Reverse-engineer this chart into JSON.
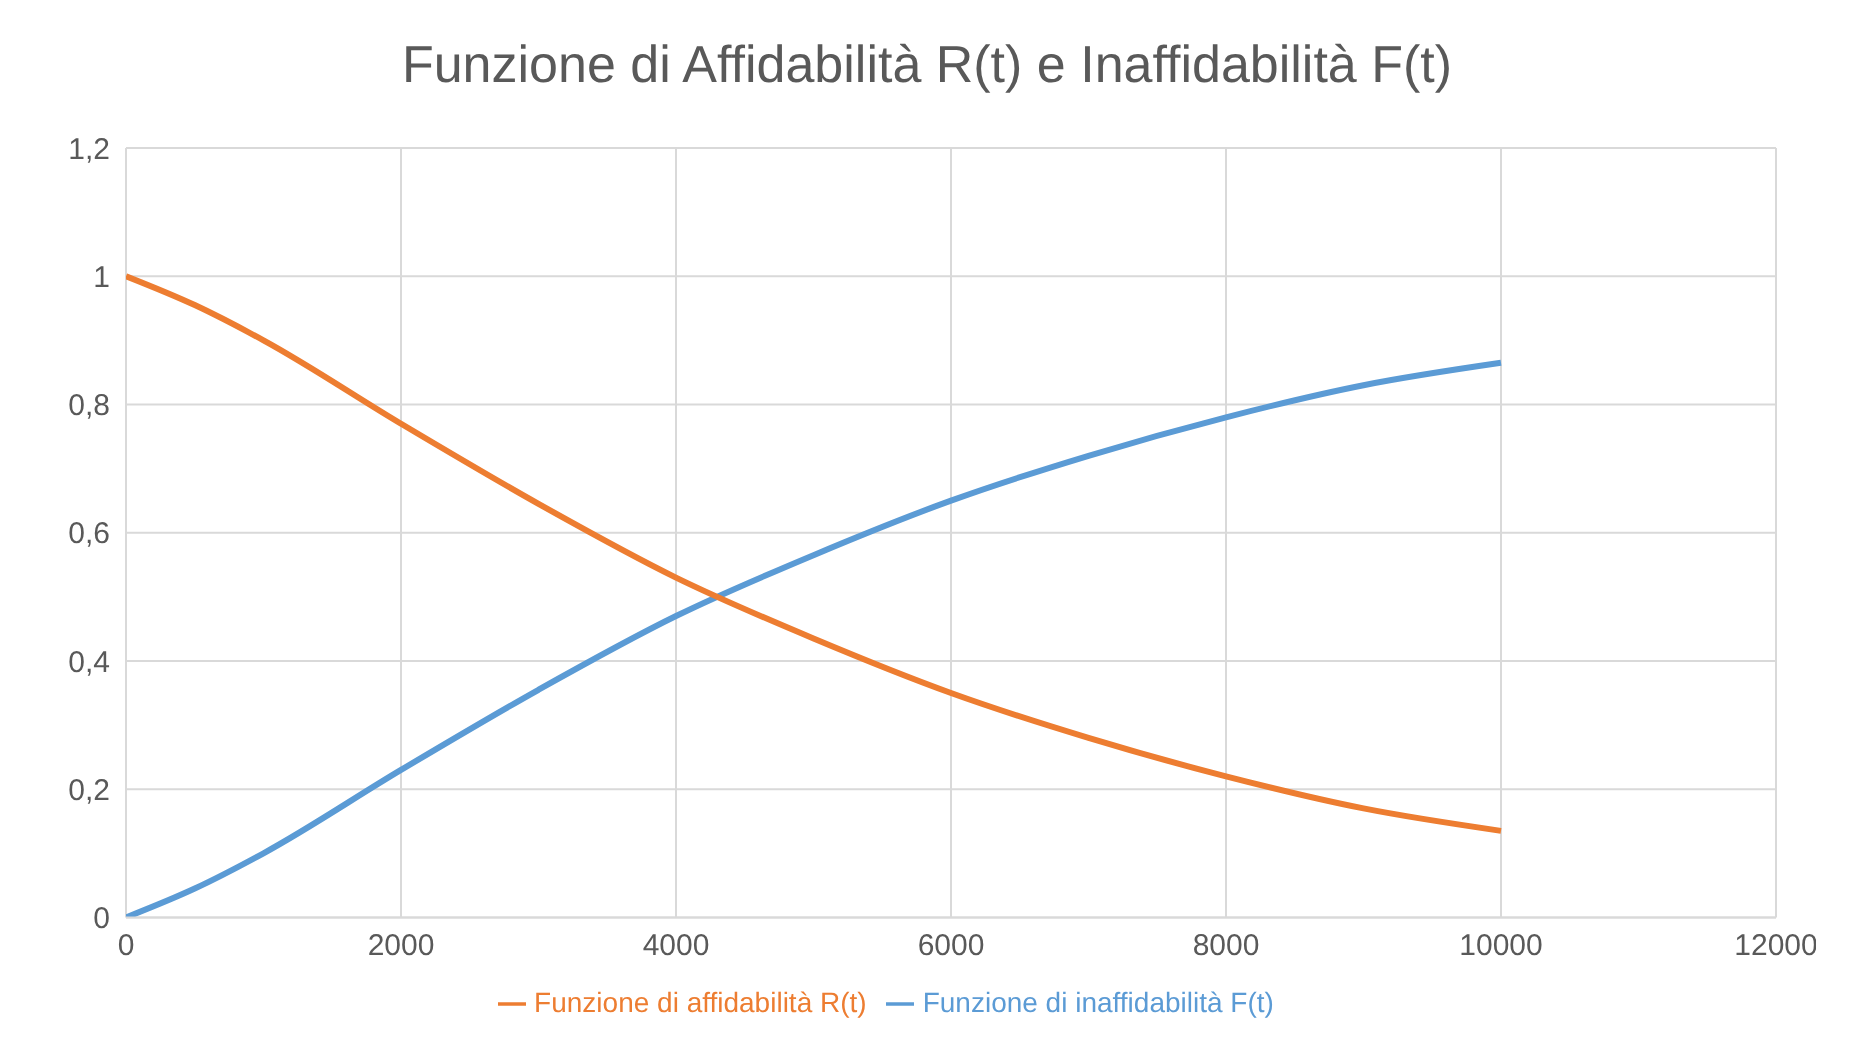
{
  "chart_data": {
    "type": "line",
    "title": "Funzione di Affidabilità R(t) e Inaffidabilità F(t)",
    "x": [
      0,
      500,
      1000,
      2000,
      3000,
      4000,
      5000,
      6000,
      7000,
      8000,
      9000,
      10000
    ],
    "series": [
      {
        "name": "Funzione di inaffidabilità F(t)",
        "color": "#5b9bd5",
        "values": [
          0,
          0.045,
          0.1,
          0.23,
          0.355,
          0.47,
          0.565,
          0.65,
          0.72,
          0.78,
          0.83,
          0.865
        ]
      },
      {
        "name": "Funzione di affidabilità R(t)",
        "color": "#ed7d31",
        "values": [
          1,
          0.955,
          0.9,
          0.77,
          0.645,
          0.53,
          0.435,
          0.35,
          0.28,
          0.22,
          0.17,
          0.135
        ]
      }
    ],
    "xlim": [
      0,
      12000
    ],
    "xticks": [
      0,
      2000,
      4000,
      6000,
      8000,
      10000,
      12000
    ],
    "ylim": [
      0,
      1.2
    ],
    "yticks": [
      0,
      {
        "value": 0.2,
        "label": "0,2"
      },
      {
        "value": 0.4,
        "label": "0,4"
      },
      {
        "value": 0.6,
        "label": "0,6"
      },
      {
        "value": 0.8,
        "label": "0,8"
      },
      1,
      {
        "value": 1.2,
        "label": "1,2"
      }
    ],
    "grid": true,
    "legend": "bottom",
    "marker": "none",
    "line_style": "solid"
  }
}
